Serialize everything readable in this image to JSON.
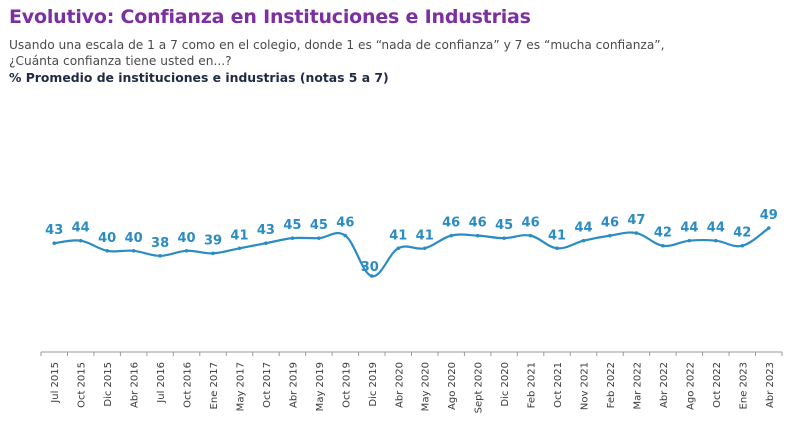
{
  "header": {
    "title": "Evolutivo: Confianza en Instituciones e Industrias",
    "subtitle_line1": "Usando una escala de 1 a 7 como en el colegio, donde 1 es “nada de confianza” y 7 es “mucha confianza”,",
    "subtitle_line2": "¿Cuánta confianza tiene usted en...?",
    "measure": "% Promedio de instituciones e industrias (notas 5 a 7)"
  },
  "colors": {
    "title": "#7b2fa0",
    "line": "#2b8cc4",
    "label": "#2b8cc4",
    "axis": "#9a9a9a"
  },
  "chart_data": {
    "type": "line",
    "title": "Evolutivo: Confianza en Instituciones e Industrias",
    "xlabel": "",
    "ylabel": "% Promedio de instituciones e industrias (notas 5 a 7)",
    "ylim": [
      0,
      50
    ],
    "grid": false,
    "legend": "none",
    "categories": [
      "Jul 2015",
      "Oct 2015",
      "Dic 2015",
      "Abr 2016",
      "Jul 2016",
      "Oct 2016",
      "Ene 2017",
      "May 2017",
      "Oct 2017",
      "Abr 2019",
      "May 2019",
      "Oct 2019",
      "Dic 2019",
      "Abr 2020",
      "May 2020",
      "Ago 2020",
      "Sept 2020",
      "Dic 2020",
      "Feb 2021",
      "Oct 2021",
      "Nov 2021",
      "Feb 2022",
      "Mar 2022",
      "Abr 2022",
      "Ago 2022",
      "Oct 2022",
      "Ene 2023",
      "Abr 2023"
    ],
    "series": [
      {
        "name": "% notas 5 a 7",
        "values": [
          43,
          44,
          40,
          40,
          38,
          40,
          39,
          41,
          43,
          45,
          45,
          46,
          30,
          41,
          41,
          46,
          46,
          45,
          46,
          41,
          44,
          46,
          47,
          42,
          44,
          44,
          42,
          49
        ]
      }
    ]
  }
}
